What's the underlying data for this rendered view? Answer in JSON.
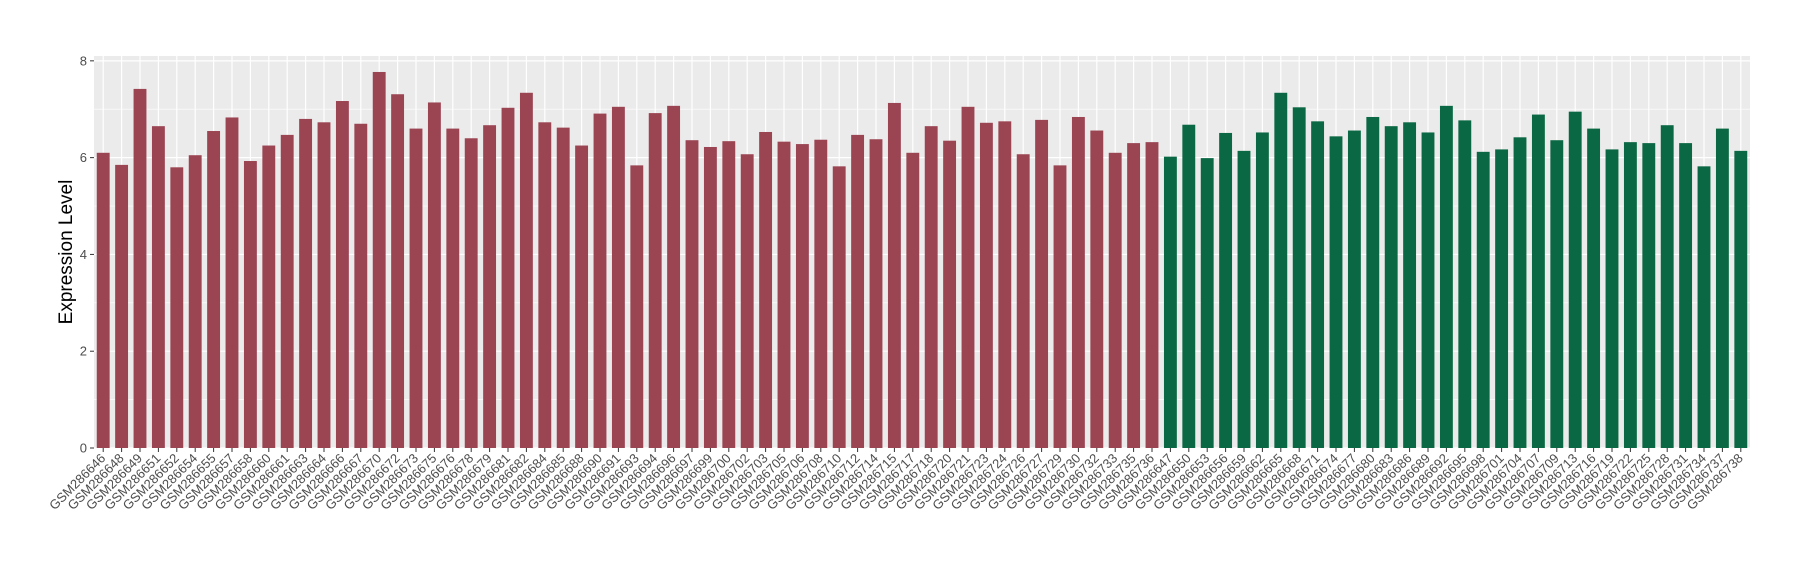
{
  "chart_data": {
    "type": "bar",
    "title": "",
    "xlabel": "",
    "ylabel": "Expression Level",
    "ylim": [
      0,
      8.1
    ],
    "y_ticks": [
      0,
      2,
      4,
      6,
      8
    ],
    "grid": true,
    "legend": "none",
    "background_color": "#ebebeb",
    "grid_color": "#ffffff",
    "groups": [
      {
        "color": "#9b4452",
        "categories": [
          "GSM286646",
          "GSM286648",
          "GSM286649",
          "GSM286651",
          "GSM286652",
          "GSM286654",
          "GSM286655",
          "GSM286657",
          "GSM286658",
          "GSM286660",
          "GSM286661",
          "GSM286663",
          "GSM286664",
          "GSM286666",
          "GSM286667",
          "GSM286670",
          "GSM286672",
          "GSM286673",
          "GSM286675",
          "GSM286676",
          "GSM286678",
          "GSM286679",
          "GSM286681",
          "GSM286682",
          "GSM286684",
          "GSM286685",
          "GSM286688",
          "GSM286690",
          "GSM286691",
          "GSM286693",
          "GSM286694",
          "GSM286696",
          "GSM286697",
          "GSM286699",
          "GSM286700",
          "GSM286702",
          "GSM286703",
          "GSM286705",
          "GSM286706",
          "GSM286708",
          "GSM286710",
          "GSM286712",
          "GSM286714",
          "GSM286715",
          "GSM286717",
          "GSM286718",
          "GSM286720",
          "GSM286721",
          "GSM286723",
          "GSM286724",
          "GSM286726",
          "GSM286727",
          "GSM286729",
          "GSM286730",
          "GSM286732",
          "GSM286733",
          "GSM286735",
          "GSM286736"
        ],
        "values": [
          6.1,
          5.85,
          7.42,
          6.65,
          5.8,
          6.05,
          6.55,
          6.83,
          5.93,
          6.25,
          6.47,
          6.8,
          6.73,
          7.17,
          6.7,
          7.77,
          7.31,
          6.6,
          7.14,
          6.6,
          6.4,
          6.67,
          7.03,
          7.34,
          6.73,
          6.62,
          6.25,
          6.91,
          7.05,
          5.84,
          6.92,
          7.07,
          6.36,
          6.22,
          6.34,
          6.07,
          6.53,
          6.33,
          6.28,
          6.37,
          5.82,
          6.47,
          6.38,
          7.13,
          6.1,
          6.65,
          6.35,
          7.05,
          6.72,
          6.75,
          6.07,
          6.78,
          5.84,
          6.84,
          6.56,
          6.1,
          6.3,
          6.32
        ]
      },
      {
        "color": "#0b6844",
        "categories": [
          "GSM286647",
          "GSM286650",
          "GSM286653",
          "GSM286656",
          "GSM286659",
          "GSM286662",
          "GSM286665",
          "GSM286668",
          "GSM286671",
          "GSM286674",
          "GSM286677",
          "GSM286680",
          "GSM286683",
          "GSM286686",
          "GSM286689",
          "GSM286692",
          "GSM286695",
          "GSM286698",
          "GSM286701",
          "GSM286704",
          "GSM286707",
          "GSM286709",
          "GSM286713",
          "GSM286716",
          "GSM286719",
          "GSM286722",
          "GSM286725",
          "GSM286728",
          "GSM286731",
          "GSM286734",
          "GSM286737",
          "GSM286738"
        ],
        "values": [
          6.02,
          6.68,
          5.99,
          6.51,
          6.14,
          6.52,
          7.34,
          7.04,
          6.75,
          6.44,
          6.56,
          6.84,
          6.65,
          6.73,
          6.52,
          7.07,
          6.77,
          6.12,
          6.17,
          6.42,
          6.89,
          6.36,
          6.95,
          6.6,
          6.17,
          6.32,
          6.3,
          6.67,
          6.3,
          5.82,
          6.6,
          6.14
        ]
      }
    ]
  }
}
